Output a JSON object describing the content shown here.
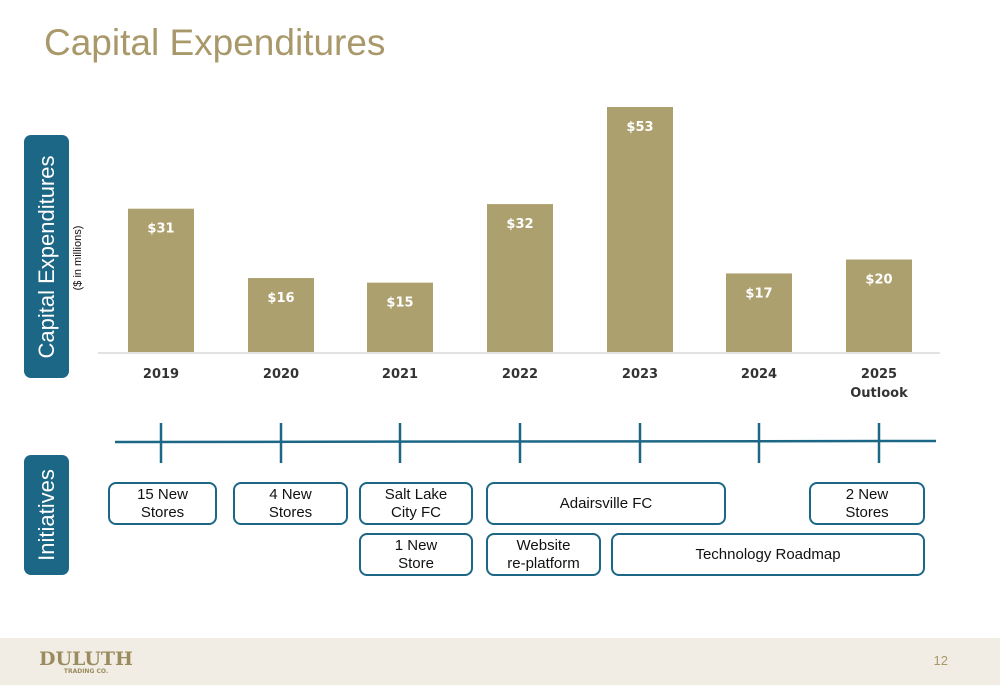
{
  "title": "Capital Expenditures",
  "side_tabs": {
    "capex": "Capital Expenditures",
    "initiatives": "Initiatives"
  },
  "units_label": "($ in millions)",
  "chart_data": {
    "type": "bar",
    "categories": [
      "2019",
      "2020",
      "2021",
      "2022",
      "2023",
      "2024",
      "2025\nOutlook"
    ],
    "values": [
      31,
      16,
      15,
      32,
      53,
      17,
      20
    ],
    "value_labels": [
      "$31",
      "$16",
      "$15",
      "$32",
      "$53",
      "$17",
      "$20"
    ],
    "title": "",
    "xlabel": "",
    "ylabel": "Capital Expenditures",
    "ylim": [
      0,
      53
    ],
    "grid": false,
    "bar_color": "#ada06f",
    "label_color": "#ffffff"
  },
  "timeline": {
    "color": "#1c6786",
    "ticks": 7
  },
  "initiatives": [
    {
      "id": "15-new-stores",
      "label": "15 New\nStores"
    },
    {
      "id": "4-new-stores",
      "label": "4 New\nStores"
    },
    {
      "id": "salt-lake-city-fc",
      "label": "Salt Lake\nCity FC"
    },
    {
      "id": "adairsville-fc",
      "label": "Adairsville FC"
    },
    {
      "id": "2-new-stores",
      "label": "2 New\nStores"
    },
    {
      "id": "1-new-store",
      "label": "1 New\nStore"
    },
    {
      "id": "website-replatform",
      "label": "Website\nre-platform"
    },
    {
      "id": "technology-roadmap",
      "label": "Technology Roadmap"
    }
  ],
  "footer": {
    "logo_text": "DULUTH",
    "logo_subtext": "TRADING CO.",
    "page_number": "12"
  }
}
